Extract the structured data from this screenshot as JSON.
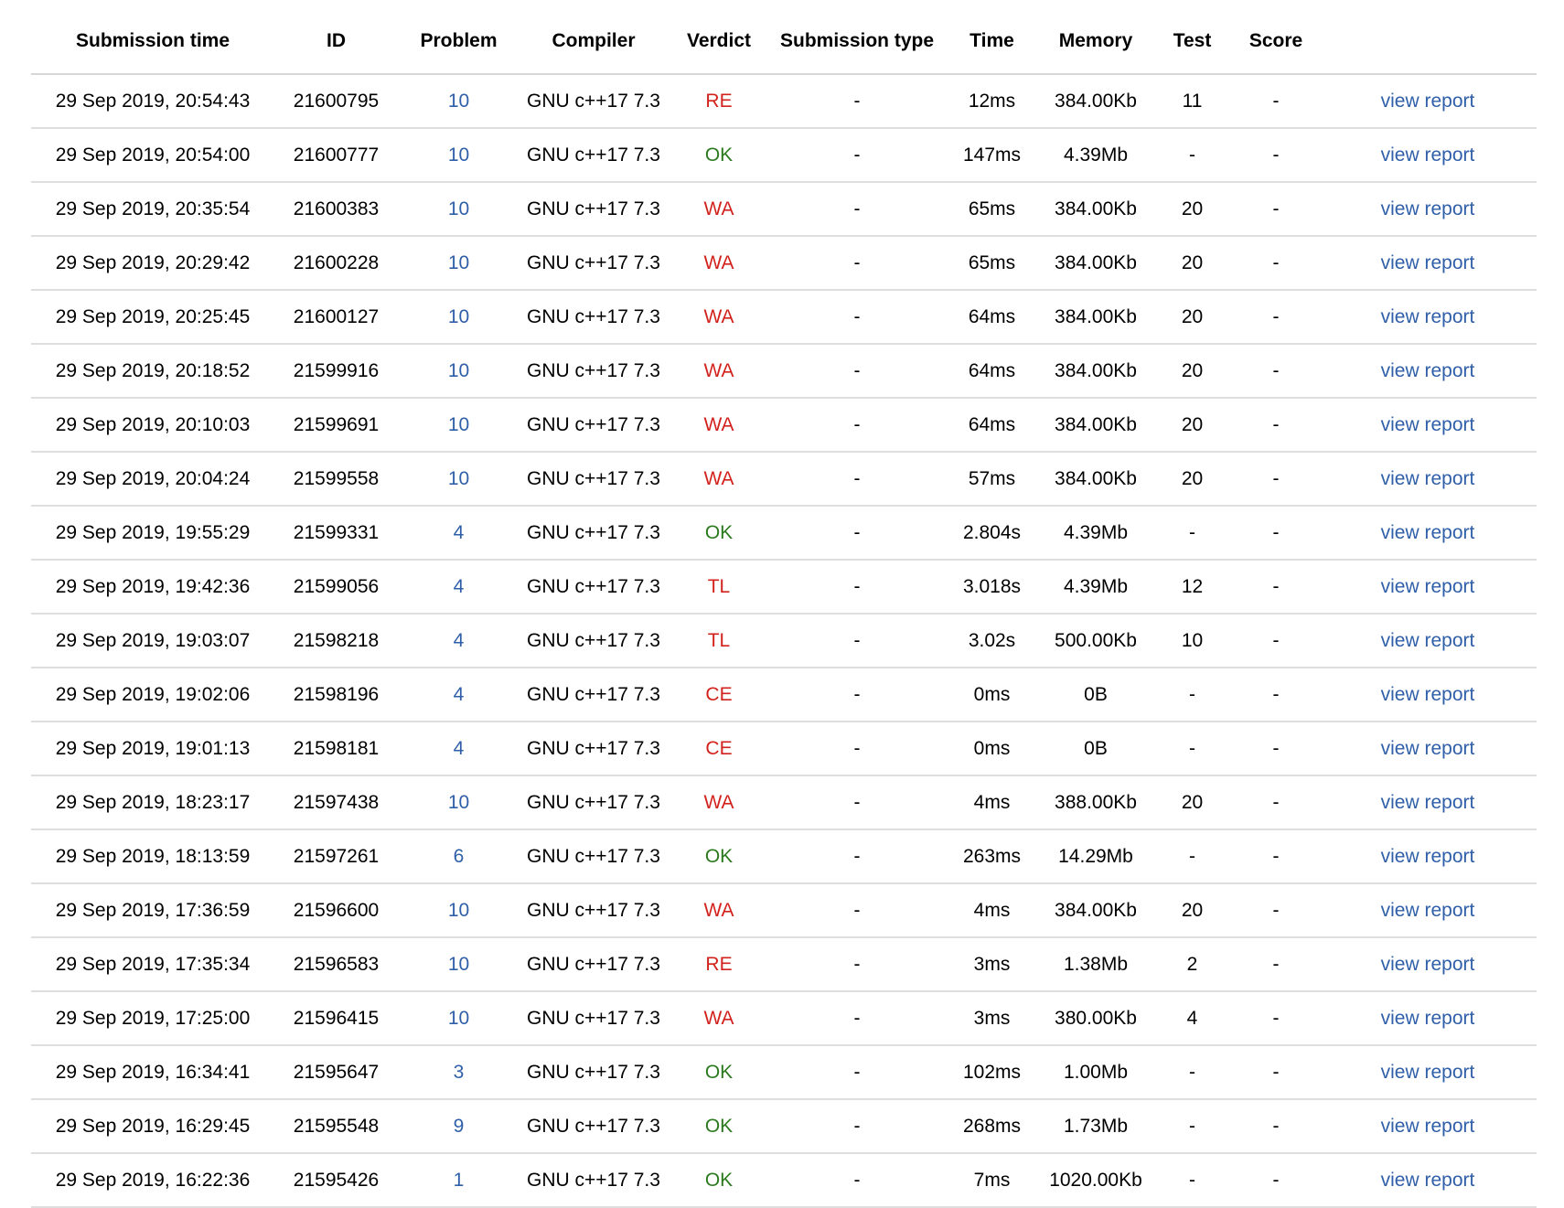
{
  "columns": {
    "submission_time": "Submission time",
    "id": "ID",
    "problem": "Problem",
    "compiler": "Compiler",
    "verdict": "Verdict",
    "submission_type": "Submission type",
    "time": "Time",
    "memory": "Memory",
    "test": "Test",
    "score": "Score"
  },
  "colors": {
    "link": "#2f5fa8",
    "verdict_ok": "#2b7a1e",
    "verdict_bad": "#d2221d",
    "row_divider": "#dedede"
  },
  "rows": [
    {
      "time_submitted": "29 Sep 2019, 20:54:43",
      "id": "21600795",
      "problem": "10",
      "compiler": "GNU c++17 7.3",
      "verdict": "RE",
      "type": "-",
      "time": "12ms",
      "memory": "384.00Kb",
      "test": "11",
      "score": "-",
      "action": "view report"
    },
    {
      "time_submitted": "29 Sep 2019, 20:54:00",
      "id": "21600777",
      "problem": "10",
      "compiler": "GNU c++17 7.3",
      "verdict": "OK",
      "type": "-",
      "time": "147ms",
      "memory": "4.39Mb",
      "test": "-",
      "score": "-",
      "action": "view report"
    },
    {
      "time_submitted": "29 Sep 2019, 20:35:54",
      "id": "21600383",
      "problem": "10",
      "compiler": "GNU c++17 7.3",
      "verdict": "WA",
      "type": "-",
      "time": "65ms",
      "memory": "384.00Kb",
      "test": "20",
      "score": "-",
      "action": "view report"
    },
    {
      "time_submitted": "29 Sep 2019, 20:29:42",
      "id": "21600228",
      "problem": "10",
      "compiler": "GNU c++17 7.3",
      "verdict": "WA",
      "type": "-",
      "time": "65ms",
      "memory": "384.00Kb",
      "test": "20",
      "score": "-",
      "action": "view report"
    },
    {
      "time_submitted": "29 Sep 2019, 20:25:45",
      "id": "21600127",
      "problem": "10",
      "compiler": "GNU c++17 7.3",
      "verdict": "WA",
      "type": "-",
      "time": "64ms",
      "memory": "384.00Kb",
      "test": "20",
      "score": "-",
      "action": "view report"
    },
    {
      "time_submitted": "29 Sep 2019, 20:18:52",
      "id": "21599916",
      "problem": "10",
      "compiler": "GNU c++17 7.3",
      "verdict": "WA",
      "type": "-",
      "time": "64ms",
      "memory": "384.00Kb",
      "test": "20",
      "score": "-",
      "action": "view report"
    },
    {
      "time_submitted": "29 Sep 2019, 20:10:03",
      "id": "21599691",
      "problem": "10",
      "compiler": "GNU c++17 7.3",
      "verdict": "WA",
      "type": "-",
      "time": "64ms",
      "memory": "384.00Kb",
      "test": "20",
      "score": "-",
      "action": "view report"
    },
    {
      "time_submitted": "29 Sep 2019, 20:04:24",
      "id": "21599558",
      "problem": "10",
      "compiler": "GNU c++17 7.3",
      "verdict": "WA",
      "type": "-",
      "time": "57ms",
      "memory": "384.00Kb",
      "test": "20",
      "score": "-",
      "action": "view report"
    },
    {
      "time_submitted": "29 Sep 2019, 19:55:29",
      "id": "21599331",
      "problem": "4",
      "compiler": "GNU c++17 7.3",
      "verdict": "OK",
      "type": "-",
      "time": "2.804s",
      "memory": "4.39Mb",
      "test": "-",
      "score": "-",
      "action": "view report"
    },
    {
      "time_submitted": "29 Sep 2019, 19:42:36",
      "id": "21599056",
      "problem": "4",
      "compiler": "GNU c++17 7.3",
      "verdict": "TL",
      "type": "-",
      "time": "3.018s",
      "memory": "4.39Mb",
      "test": "12",
      "score": "-",
      "action": "view report"
    },
    {
      "time_submitted": "29 Sep 2019, 19:03:07",
      "id": "21598218",
      "problem": "4",
      "compiler": "GNU c++17 7.3",
      "verdict": "TL",
      "type": "-",
      "time": "3.02s",
      "memory": "500.00Kb",
      "test": "10",
      "score": "-",
      "action": "view report"
    },
    {
      "time_submitted": "29 Sep 2019, 19:02:06",
      "id": "21598196",
      "problem": "4",
      "compiler": "GNU c++17 7.3",
      "verdict": "CE",
      "type": "-",
      "time": "0ms",
      "memory": "0B",
      "test": "-",
      "score": "-",
      "action": "view report"
    },
    {
      "time_submitted": "29 Sep 2019, 19:01:13",
      "id": "21598181",
      "problem": "4",
      "compiler": "GNU c++17 7.3",
      "verdict": "CE",
      "type": "-",
      "time": "0ms",
      "memory": "0B",
      "test": "-",
      "score": "-",
      "action": "view report"
    },
    {
      "time_submitted": "29 Sep 2019, 18:23:17",
      "id": "21597438",
      "problem": "10",
      "compiler": "GNU c++17 7.3",
      "verdict": "WA",
      "type": "-",
      "time": "4ms",
      "memory": "388.00Kb",
      "test": "20",
      "score": "-",
      "action": "view report"
    },
    {
      "time_submitted": "29 Sep 2019, 18:13:59",
      "id": "21597261",
      "problem": "6",
      "compiler": "GNU c++17 7.3",
      "verdict": "OK",
      "type": "-",
      "time": "263ms",
      "memory": "14.29Mb",
      "test": "-",
      "score": "-",
      "action": "view report"
    },
    {
      "time_submitted": "29 Sep 2019, 17:36:59",
      "id": "21596600",
      "problem": "10",
      "compiler": "GNU c++17 7.3",
      "verdict": "WA",
      "type": "-",
      "time": "4ms",
      "memory": "384.00Kb",
      "test": "20",
      "score": "-",
      "action": "view report"
    },
    {
      "time_submitted": "29 Sep 2019, 17:35:34",
      "id": "21596583",
      "problem": "10",
      "compiler": "GNU c++17 7.3",
      "verdict": "RE",
      "type": "-",
      "time": "3ms",
      "memory": "1.38Mb",
      "test": "2",
      "score": "-",
      "action": "view report"
    },
    {
      "time_submitted": "29 Sep 2019, 17:25:00",
      "id": "21596415",
      "problem": "10",
      "compiler": "GNU c++17 7.3",
      "verdict": "WA",
      "type": "-",
      "time": "3ms",
      "memory": "380.00Kb",
      "test": "4",
      "score": "-",
      "action": "view report"
    },
    {
      "time_submitted": "29 Sep 2019, 16:34:41",
      "id": "21595647",
      "problem": "3",
      "compiler": "GNU c++17 7.3",
      "verdict": "OK",
      "type": "-",
      "time": "102ms",
      "memory": "1.00Mb",
      "test": "-",
      "score": "-",
      "action": "view report"
    },
    {
      "time_submitted": "29 Sep 2019, 16:29:45",
      "id": "21595548",
      "problem": "9",
      "compiler": "GNU c++17 7.3",
      "verdict": "OK",
      "type": "-",
      "time": "268ms",
      "memory": "1.73Mb",
      "test": "-",
      "score": "-",
      "action": "view report"
    },
    {
      "time_submitted": "29 Sep 2019, 16:22:36",
      "id": "21595426",
      "problem": "1",
      "compiler": "GNU c++17 7.3",
      "verdict": "OK",
      "type": "-",
      "time": "7ms",
      "memory": "1020.00Kb",
      "test": "-",
      "score": "-",
      "action": "view report"
    }
  ]
}
